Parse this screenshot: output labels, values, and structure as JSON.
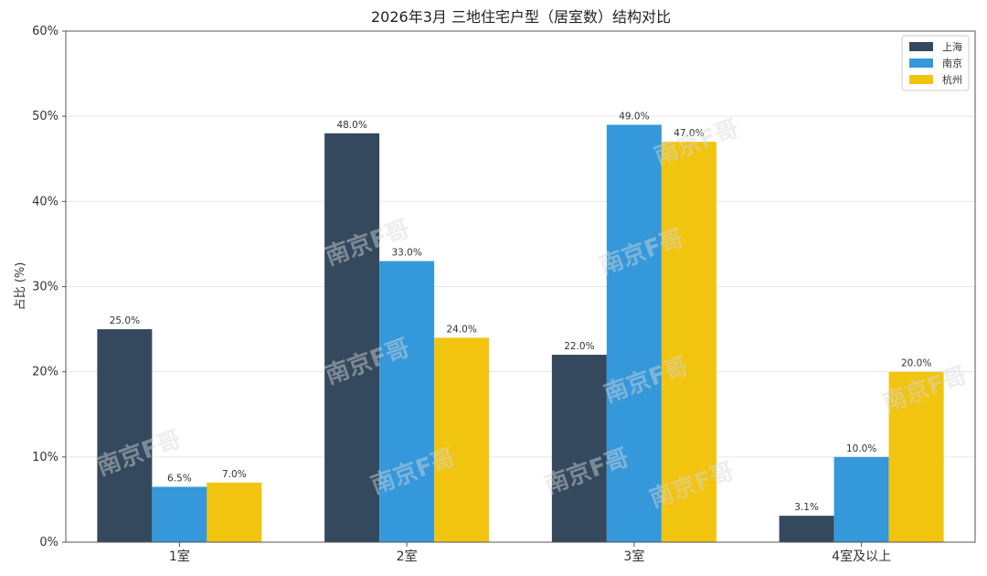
{
  "chart_data": {
    "type": "bar",
    "title": "2026年3月 三地住宅户型（居室数）结构对比",
    "xlabel": "",
    "ylabel": "占比 (%)",
    "categories": [
      "1室",
      "2室",
      "3室",
      "4室及以上"
    ],
    "series": [
      {
        "name": "上海",
        "color": "#34495e",
        "values": [
          25.0,
          48.0,
          22.0,
          3.1
        ]
      },
      {
        "name": "南京",
        "color": "#3498db",
        "values": [
          6.5,
          33.0,
          49.0,
          10.0
        ]
      },
      {
        "name": "杭州",
        "color": "#f1c40f",
        "values": [
          7.0,
          24.0,
          47.0,
          20.0
        ]
      }
    ],
    "ylim": [
      0,
      60
    ],
    "yticks": [
      "0%",
      "10%",
      "20%",
      "30%",
      "40%",
      "50%",
      "60%"
    ],
    "data_labels": [
      [
        "25.0%",
        "48.0%",
        "22.0%",
        "3.1%"
      ],
      [
        "6.5%",
        "33.0%",
        "49.0%",
        "10.0%"
      ],
      [
        "7.0%",
        "24.0%",
        "47.0%",
        "20.0%"
      ]
    ],
    "legend_position": "top-right",
    "grid": "horizontal"
  },
  "watermark": "南京F哥"
}
